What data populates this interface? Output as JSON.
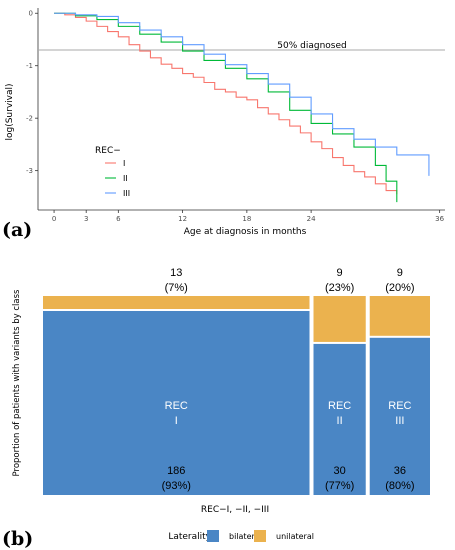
{
  "chart_data": [
    {
      "type": "line",
      "panel": "(a)",
      "xlabel": "Age at diagnosis in months",
      "ylabel": "log(Survival)",
      "xticks": [
        0,
        3,
        6,
        12,
        18,
        24,
        36
      ],
      "yticks": [
        0,
        -1,
        -2,
        -3
      ],
      "xlim": [
        -1.5,
        36.5
      ],
      "ylim": [
        -3.75,
        0.1
      ],
      "grid": false,
      "reference_line": {
        "y": -0.7,
        "label": "50% diagnosed"
      },
      "legend": {
        "title": "REC−",
        "position": "bottom-left"
      },
      "series": [
        {
          "name": "I",
          "color": "#f8766d",
          "x": [
            0,
            1,
            2,
            3,
            4,
            5,
            6,
            7,
            8,
            9,
            10,
            11,
            12,
            13,
            14,
            15,
            16,
            17,
            18,
            19,
            20,
            21,
            22,
            23,
            24,
            25,
            26,
            27,
            28,
            29,
            30,
            31,
            32
          ],
          "y": [
            0,
            -0.03,
            -0.08,
            -0.15,
            -0.25,
            -0.35,
            -0.45,
            -0.6,
            -0.72,
            -0.85,
            -0.97,
            -1.05,
            -1.15,
            -1.22,
            -1.32,
            -1.45,
            -1.5,
            -1.6,
            -1.65,
            -1.8,
            -1.92,
            -2.03,
            -2.15,
            -2.28,
            -2.45,
            -2.58,
            -2.75,
            -2.9,
            -3.02,
            -3.12,
            -3.25,
            -3.38,
            -3.45
          ]
        },
        {
          "name": "II",
          "color": "#00ba38",
          "x": [
            0,
            2,
            4,
            6,
            8,
            10,
            12,
            14,
            16,
            18,
            20,
            22,
            24,
            26,
            28,
            30,
            31,
            32
          ],
          "y": [
            0,
            -0.05,
            -0.12,
            -0.25,
            -0.4,
            -0.55,
            -0.72,
            -0.9,
            -1.05,
            -1.25,
            -1.5,
            -1.85,
            -2.1,
            -2.3,
            -2.55,
            -2.9,
            -3.2,
            -3.6
          ]
        },
        {
          "name": "III",
          "color": "#619cff",
          "x": [
            0,
            2,
            4,
            6,
            8,
            10,
            12,
            14,
            16,
            18,
            20,
            22,
            24,
            26,
            28,
            30,
            32,
            34,
            35
          ],
          "y": [
            0,
            -0.03,
            -0.06,
            -0.18,
            -0.32,
            -0.45,
            -0.6,
            -0.78,
            -0.98,
            -1.15,
            -1.35,
            -1.6,
            -1.92,
            -2.2,
            -2.4,
            -2.55,
            -2.7,
            -2.7,
            -3.1
          ]
        }
      ]
    },
    {
      "type": "bar",
      "subtype": "mosaic",
      "panel": "(b)",
      "ylabel": "Proportion of patients with variants by class",
      "xlabel": "REC−I, −II, −III",
      "legend": {
        "title": "Laterality",
        "position": "bottom",
        "entries": [
          {
            "name": "bilateral",
            "color": "#4a86c5"
          },
          {
            "name": "unilateral",
            "color": "#ebb24e"
          }
        ]
      },
      "categories": [
        "REC I",
        "REC II",
        "REC III"
      ],
      "category_lines": [
        [
          "REC",
          "I"
        ],
        [
          "REC",
          "II"
        ],
        [
          "REC",
          "III"
        ]
      ],
      "totals": [
        199,
        39,
        45
      ],
      "series": [
        {
          "name": "unilateral",
          "values": [
            13,
            9,
            9
          ],
          "labels": [
            "(7%)",
            "(23%)",
            "(20%)"
          ]
        },
        {
          "name": "bilateral",
          "values": [
            186,
            30,
            36
          ],
          "labels": [
            "(93%)",
            "(77%)",
            "(80%)"
          ]
        }
      ]
    }
  ]
}
